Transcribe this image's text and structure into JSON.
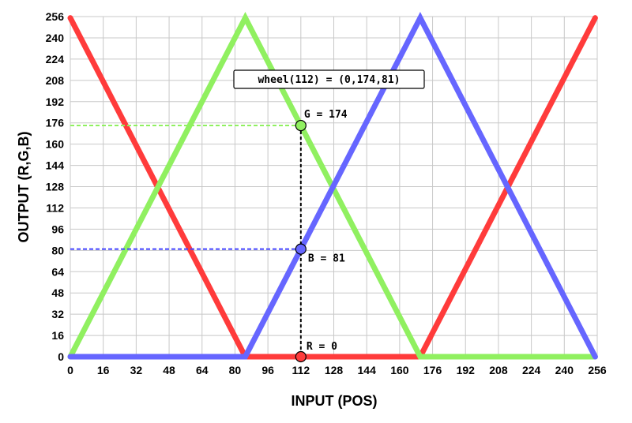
{
  "chart_data": {
    "type": "line",
    "xlabel": "INPUT (POS)",
    "ylabel": "OUTPUT (R,G,B)",
    "xlim": [
      0,
      256
    ],
    "ylim": [
      0,
      256
    ],
    "xticks": [
      0,
      16,
      32,
      48,
      64,
      80,
      96,
      112,
      128,
      144,
      160,
      176,
      192,
      208,
      224,
      240,
      256
    ],
    "yticks": [
      0,
      16,
      32,
      48,
      64,
      80,
      96,
      112,
      128,
      144,
      160,
      176,
      192,
      208,
      224,
      240,
      256
    ],
    "grid": true,
    "series": [
      {
        "key": "red",
        "color": "#ff3b3b",
        "x": [
          0,
          85,
          170,
          255
        ],
        "y": [
          255,
          0,
          0,
          255
        ]
      },
      {
        "key": "green",
        "color": "#90f060",
        "x": [
          0,
          85,
          170,
          255
        ],
        "y": [
          0,
          255,
          0,
          0
        ]
      },
      {
        "key": "blue",
        "color": "#6666ff",
        "x": [
          0,
          85,
          170,
          255
        ],
        "y": [
          0,
          0,
          255,
          0
        ]
      }
    ],
    "annotation": {
      "box_text": "wheel(112) = (0,174,81)",
      "x": 112,
      "points": [
        {
          "key": "g",
          "label": "G = 174",
          "y": 174,
          "color": "#90f060",
          "guide_color": "#90f060"
        },
        {
          "key": "b",
          "label": "B = 81",
          "y": 81,
          "color": "#6666ff",
          "guide_color": "#4444ff"
        },
        {
          "key": "r",
          "label": "R = 0",
          "y": 0,
          "color": "#ff3b3b",
          "guide_color": null
        }
      ]
    }
  }
}
